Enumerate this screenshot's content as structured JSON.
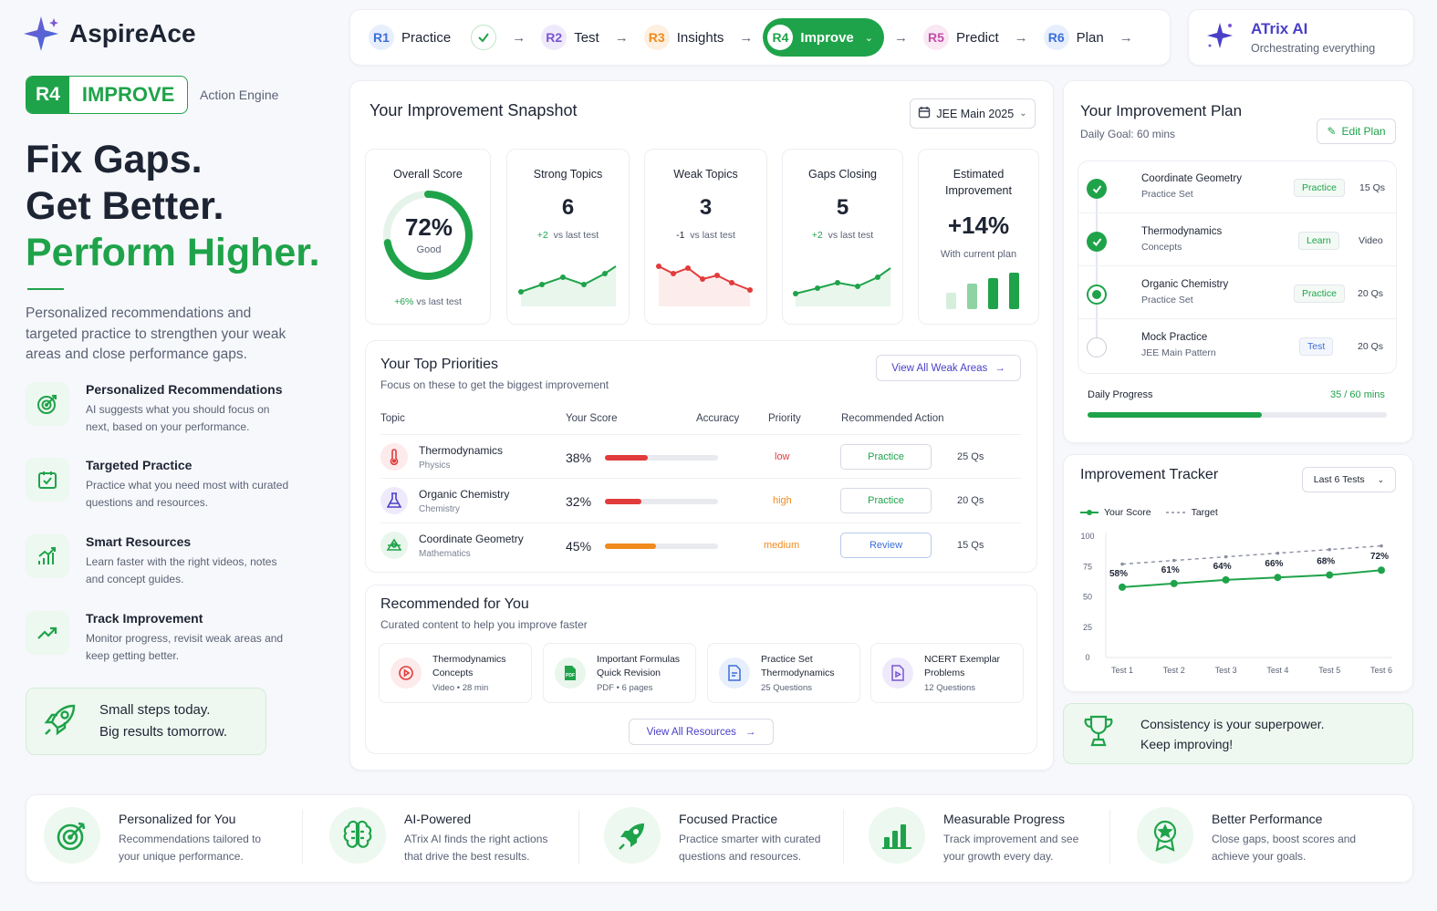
{
  "brand": {
    "name": "AspireAce"
  },
  "header_badge": {
    "code": "R4",
    "label": "IMPROVE",
    "subtitle": "Action Engine"
  },
  "hero": {
    "line1": "Fix Gaps.",
    "line2": "Get Better.",
    "line3": "Perform Higher.",
    "intro": "Personalized recommendations and targeted practice to strengthen your weak areas and close performance gaps."
  },
  "features": [
    {
      "title": "Personalized Recommendations",
      "desc": "AI suggests what you should focus on next, based on your performance.",
      "icon": "target-icon"
    },
    {
      "title": "Targeted Practice",
      "desc": "Practice what you need most with curated questions and resources.",
      "icon": "calendar-check-icon"
    },
    {
      "title": "Smart Resources",
      "desc": "Learn faster with the right videos, notes and concept guides.",
      "icon": "growth-chart-icon"
    },
    {
      "title": "Track Improvement",
      "desc": "Monitor progress, revisit weak areas and keep getting better.",
      "icon": "trend-up-icon"
    }
  ],
  "motto": {
    "line1": "Small steps today.",
    "line2": "Big results tomorrow."
  },
  "pipeline": [
    {
      "code": "R1",
      "name": "Practice",
      "color": "#3b6fd8",
      "bg": "#e8effc"
    },
    {
      "code": "R2",
      "name": "Test",
      "color": "#7a55d4",
      "bg": "#efeafb"
    },
    {
      "code": "R3",
      "name": "Insights",
      "color": "#f08a1c",
      "bg": "#fdf0e0"
    },
    {
      "code": "R4",
      "name": "Improve",
      "color": "#1fa34a",
      "bg": "#ffffff"
    },
    {
      "code": "R5",
      "name": "Predict",
      "color": "#c24fa8",
      "bg": "#f9e8f4"
    },
    {
      "code": "R6",
      "name": "Plan",
      "color": "#3b6fd8",
      "bg": "#e8effc"
    }
  ],
  "ai": {
    "title": "ATrix AI",
    "subtitle": "Orchestrating everything"
  },
  "snapshot": {
    "title": "Your Improvement Snapshot",
    "exam": "JEE Main 2025",
    "overall": {
      "label": "Overall Score",
      "value": "72%",
      "grade": "Good",
      "delta": "+6%",
      "delta_label": "vs last test",
      "percent": 72
    },
    "stats": [
      {
        "label": "Strong Topics",
        "value": "6",
        "delta": "+2",
        "delta_label": "vs last test",
        "trend": "up"
      },
      {
        "label": "Weak Topics",
        "value": "3",
        "delta": "-1",
        "delta_label": "vs last test",
        "trend": "down"
      },
      {
        "label": "Gaps Closing",
        "value": "5",
        "delta": "+2",
        "delta_label": "vs last test",
        "trend": "up"
      }
    ],
    "estimated": {
      "label": "Estimated Improvement",
      "value": "+14%",
      "note": "With current plan"
    }
  },
  "priorities": {
    "title": "Your Top Priorities",
    "subtitle": "Focus on these to get the biggest improvement",
    "view_all": "View All Weak Areas",
    "headers": {
      "topic": "Topic",
      "score": "Your Score",
      "accuracy": "Accuracy",
      "priority": "Priority",
      "action": "Recommended Action"
    },
    "rows": [
      {
        "topic": "Thermodynamics",
        "subject": "Physics",
        "score": "38%",
        "accuracy": 38,
        "priority": "low",
        "action": "Practice",
        "qs": "25 Qs"
      },
      {
        "topic": "Organic Chemistry",
        "subject": "Chemistry",
        "score": "32%",
        "accuracy": 32,
        "priority": "high",
        "action": "Practice",
        "qs": "20 Qs"
      },
      {
        "topic": "Coordinate Geometry",
        "subject": "Mathematics",
        "score": "45%",
        "accuracy": 45,
        "priority": "medium",
        "action": "Review",
        "qs": "15 Qs"
      }
    ]
  },
  "recommended": {
    "title": "Recommended for You",
    "subtitle": "Curated content to help you improve faster",
    "items": [
      {
        "line1": "Thermodynamics",
        "line2": "Concepts",
        "meta": "Video • 28 min"
      },
      {
        "line1": "Important Formulas",
        "line2": "Quick Revision",
        "meta": "PDF • 6 pages"
      },
      {
        "line1": "Practice Set",
        "line2": "Thermodynamics",
        "meta": "25 Questions"
      },
      {
        "line1": "NCERT Exemplar",
        "line2": "Problems",
        "meta": "12 Questions"
      }
    ],
    "view_all": "View All Resources"
  },
  "plan": {
    "title": "Your Improvement Plan",
    "goal": "Daily Goal: 60 mins",
    "edit": "Edit Plan",
    "items": [
      {
        "title": "Coordinate Geometry",
        "sub": "Practice Set",
        "tag": "Practice",
        "count": "15 Qs",
        "status": "done"
      },
      {
        "title": "Thermodynamics",
        "sub": "Concepts",
        "tag": "Learn",
        "count": "Video",
        "status": "done"
      },
      {
        "title": "Organic Chemistry",
        "sub": "Practice Set",
        "tag": "Practice",
        "count": "20 Qs",
        "status": "current"
      },
      {
        "title": "Mock Practice",
        "sub": "JEE Main Pattern",
        "tag": "Test",
        "count": "20 Qs",
        "status": "todo"
      }
    ],
    "progress_label": "Daily Progress",
    "progress_text": "35 / 60 mins",
    "progress": 0.5833
  },
  "tracker": {
    "title": "Improvement Tracker",
    "range": "Last 6 Tests",
    "legend_score": "Your Score",
    "legend_target": "Target"
  },
  "chart_data": {
    "type": "line",
    "categories": [
      "Test 1",
      "Test 2",
      "Test 3",
      "Test 4",
      "Test 5",
      "Test 6"
    ],
    "series": [
      {
        "name": "Your Score",
        "values": [
          58,
          61,
          64,
          66,
          68,
          72
        ],
        "labels": [
          "58%",
          "61%",
          "64%",
          "66%",
          "68%",
          "72%"
        ]
      },
      {
        "name": "Target",
        "values": [
          77,
          80,
          83,
          86,
          89,
          92
        ]
      }
    ],
    "yticks": [
      "100",
      "75",
      "50",
      "25",
      "0"
    ],
    "ylim": [
      0,
      100
    ]
  },
  "consistency": {
    "line1": "Consistency is your superpower.",
    "line2": "Keep improving!"
  },
  "benefits": [
    {
      "title": "Personalized for You",
      "desc1": "Recommendations tailored to",
      "desc2": "your unique performance."
    },
    {
      "title": "AI-Powered",
      "desc1": "ATrix AI finds the right actions",
      "desc2": "that drive the best results."
    },
    {
      "title": "Focused Practice",
      "desc1": "Practice smarter with curated",
      "desc2": "questions and resources."
    },
    {
      "title": "Measurable Progress",
      "desc1": "Track improvement and see",
      "desc2": "your growth every day."
    },
    {
      "title": "Better Performance",
      "desc1": "Close gaps, boost scores and",
      "desc2": "achieve your goals."
    }
  ]
}
